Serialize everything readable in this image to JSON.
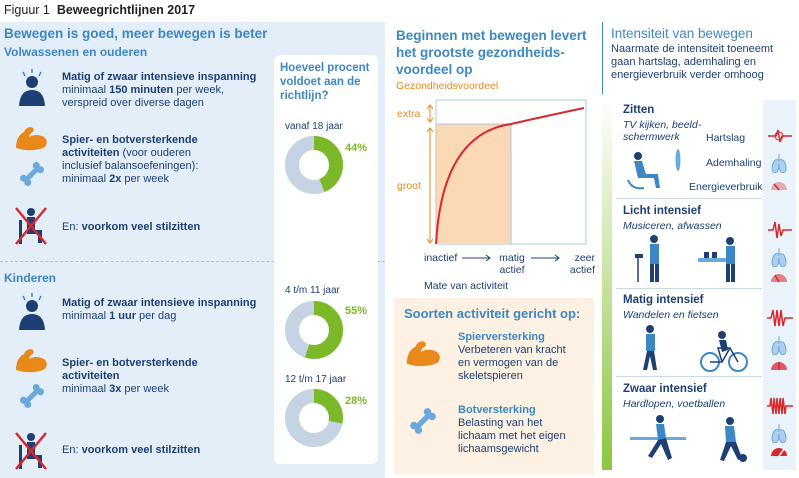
{
  "figure": {
    "prefix": "Figuur 1",
    "title": "Beweegrichtlijnen 2017"
  },
  "left": {
    "heading": "Bewegen is goed, meer bewegen is beter",
    "adults": {
      "label": "Volwassenen en ouderen",
      "items": [
        {
          "icon": "person-pulse-icon",
          "bold": "Matig of zwaar intensieve inspanning",
          "line2a": "minimaal ",
          "line2b": "150 minuten",
          "line2c": " per week,",
          "line3": "verspreid over diverse dagen"
        },
        {
          "icon": "flexed-arm-icon",
          "bold1": "Spier- en botversterkende",
          "bold2": "activiteiten",
          "rest2": " (voor ouderen",
          "line3": "inclusief balansoefeningen):",
          "line4a": "minimaal ",
          "line4b": "2x",
          "line4c": " per week"
        },
        {
          "icon": "sitting-crossed-icon",
          "prefix": "En: ",
          "bold": "voorkom veel stilzitten"
        }
      ]
    },
    "children": {
      "label": "Kinderen",
      "items": [
        {
          "icon": "person-pulse-icon",
          "bold": "Matig of zwaar intensieve inspanning",
          "line2": "minimaal ",
          "line2b": "1 uur",
          "line2c": " per dag"
        },
        {
          "icon": "flexed-arm-icon",
          "bold1": "Spier- en botversterkende",
          "bold2": "activiteiten",
          "line3a": "minimaal ",
          "line3b": "3x",
          "line3c": " per week"
        },
        {
          "icon": "sitting-crossed-icon",
          "prefix": "En: ",
          "bold": "voorkom veel stilzitten"
        }
      ]
    },
    "question": [
      "Hoeveel procent",
      "voldoet aan de",
      "richtlijn?"
    ],
    "donuts": [
      {
        "age": "vanaf 18 jaar",
        "percent": 44,
        "label": "44%"
      },
      {
        "age": "4 t/m 11 jaar",
        "percent": 55,
        "label": "55%"
      },
      {
        "age": "12 t/m 17 jaar",
        "percent": 28,
        "label": "28%"
      }
    ],
    "colors": {
      "green": "#7cb929",
      "grey": "#c5d3e3"
    }
  },
  "middle": {
    "title": [
      "Beginnen met bewegen levert",
      "het grootste gezondheids-",
      "voordeel op"
    ],
    "y_axis": "Gezondheidsvoordeel",
    "levels": [
      "extra",
      "groot"
    ],
    "x_ticks": [
      "inactief",
      "matig",
      "actief",
      "zeer",
      "actief"
    ],
    "x_axis": "Mate van activiteit",
    "kinds": {
      "title": "Soorten activiteit gericht op:",
      "items": [
        {
          "icon": "flexed-arm-icon",
          "head": "Spierversterking",
          "lines": [
            "Verbeteren van kracht",
            "en vermogen van de",
            "skeletspieren"
          ]
        },
        {
          "icon": "bone-icon",
          "head": "Botversterking",
          "lines": [
            "Belasting van het",
            "lichaam met het eigen",
            "lichaamsgewicht"
          ]
        }
      ]
    }
  },
  "right": {
    "title": "Intensiteit van bewegen",
    "subtitle": [
      "Naarmate de intensiteit toeneemt",
      "gaan hartslag, ademhaling en",
      "energieverbruik verder omhoog"
    ],
    "levels": [
      {
        "head": "Zitten",
        "desc": [
          "TV kijken, beeld-",
          "schermwerk"
        ]
      },
      {
        "head": "Licht intensief",
        "desc": [
          "Musiceren, afwassen"
        ]
      },
      {
        "head": "Matig intensief",
        "desc": [
          "Wandelen en fietsen"
        ]
      },
      {
        "head": "Zwaar intensief",
        "desc": [
          "Hardlopen, voetballen"
        ]
      }
    ],
    "legend": [
      "Hartslag",
      "Ademhaling",
      "Energieverbruik"
    ]
  }
}
